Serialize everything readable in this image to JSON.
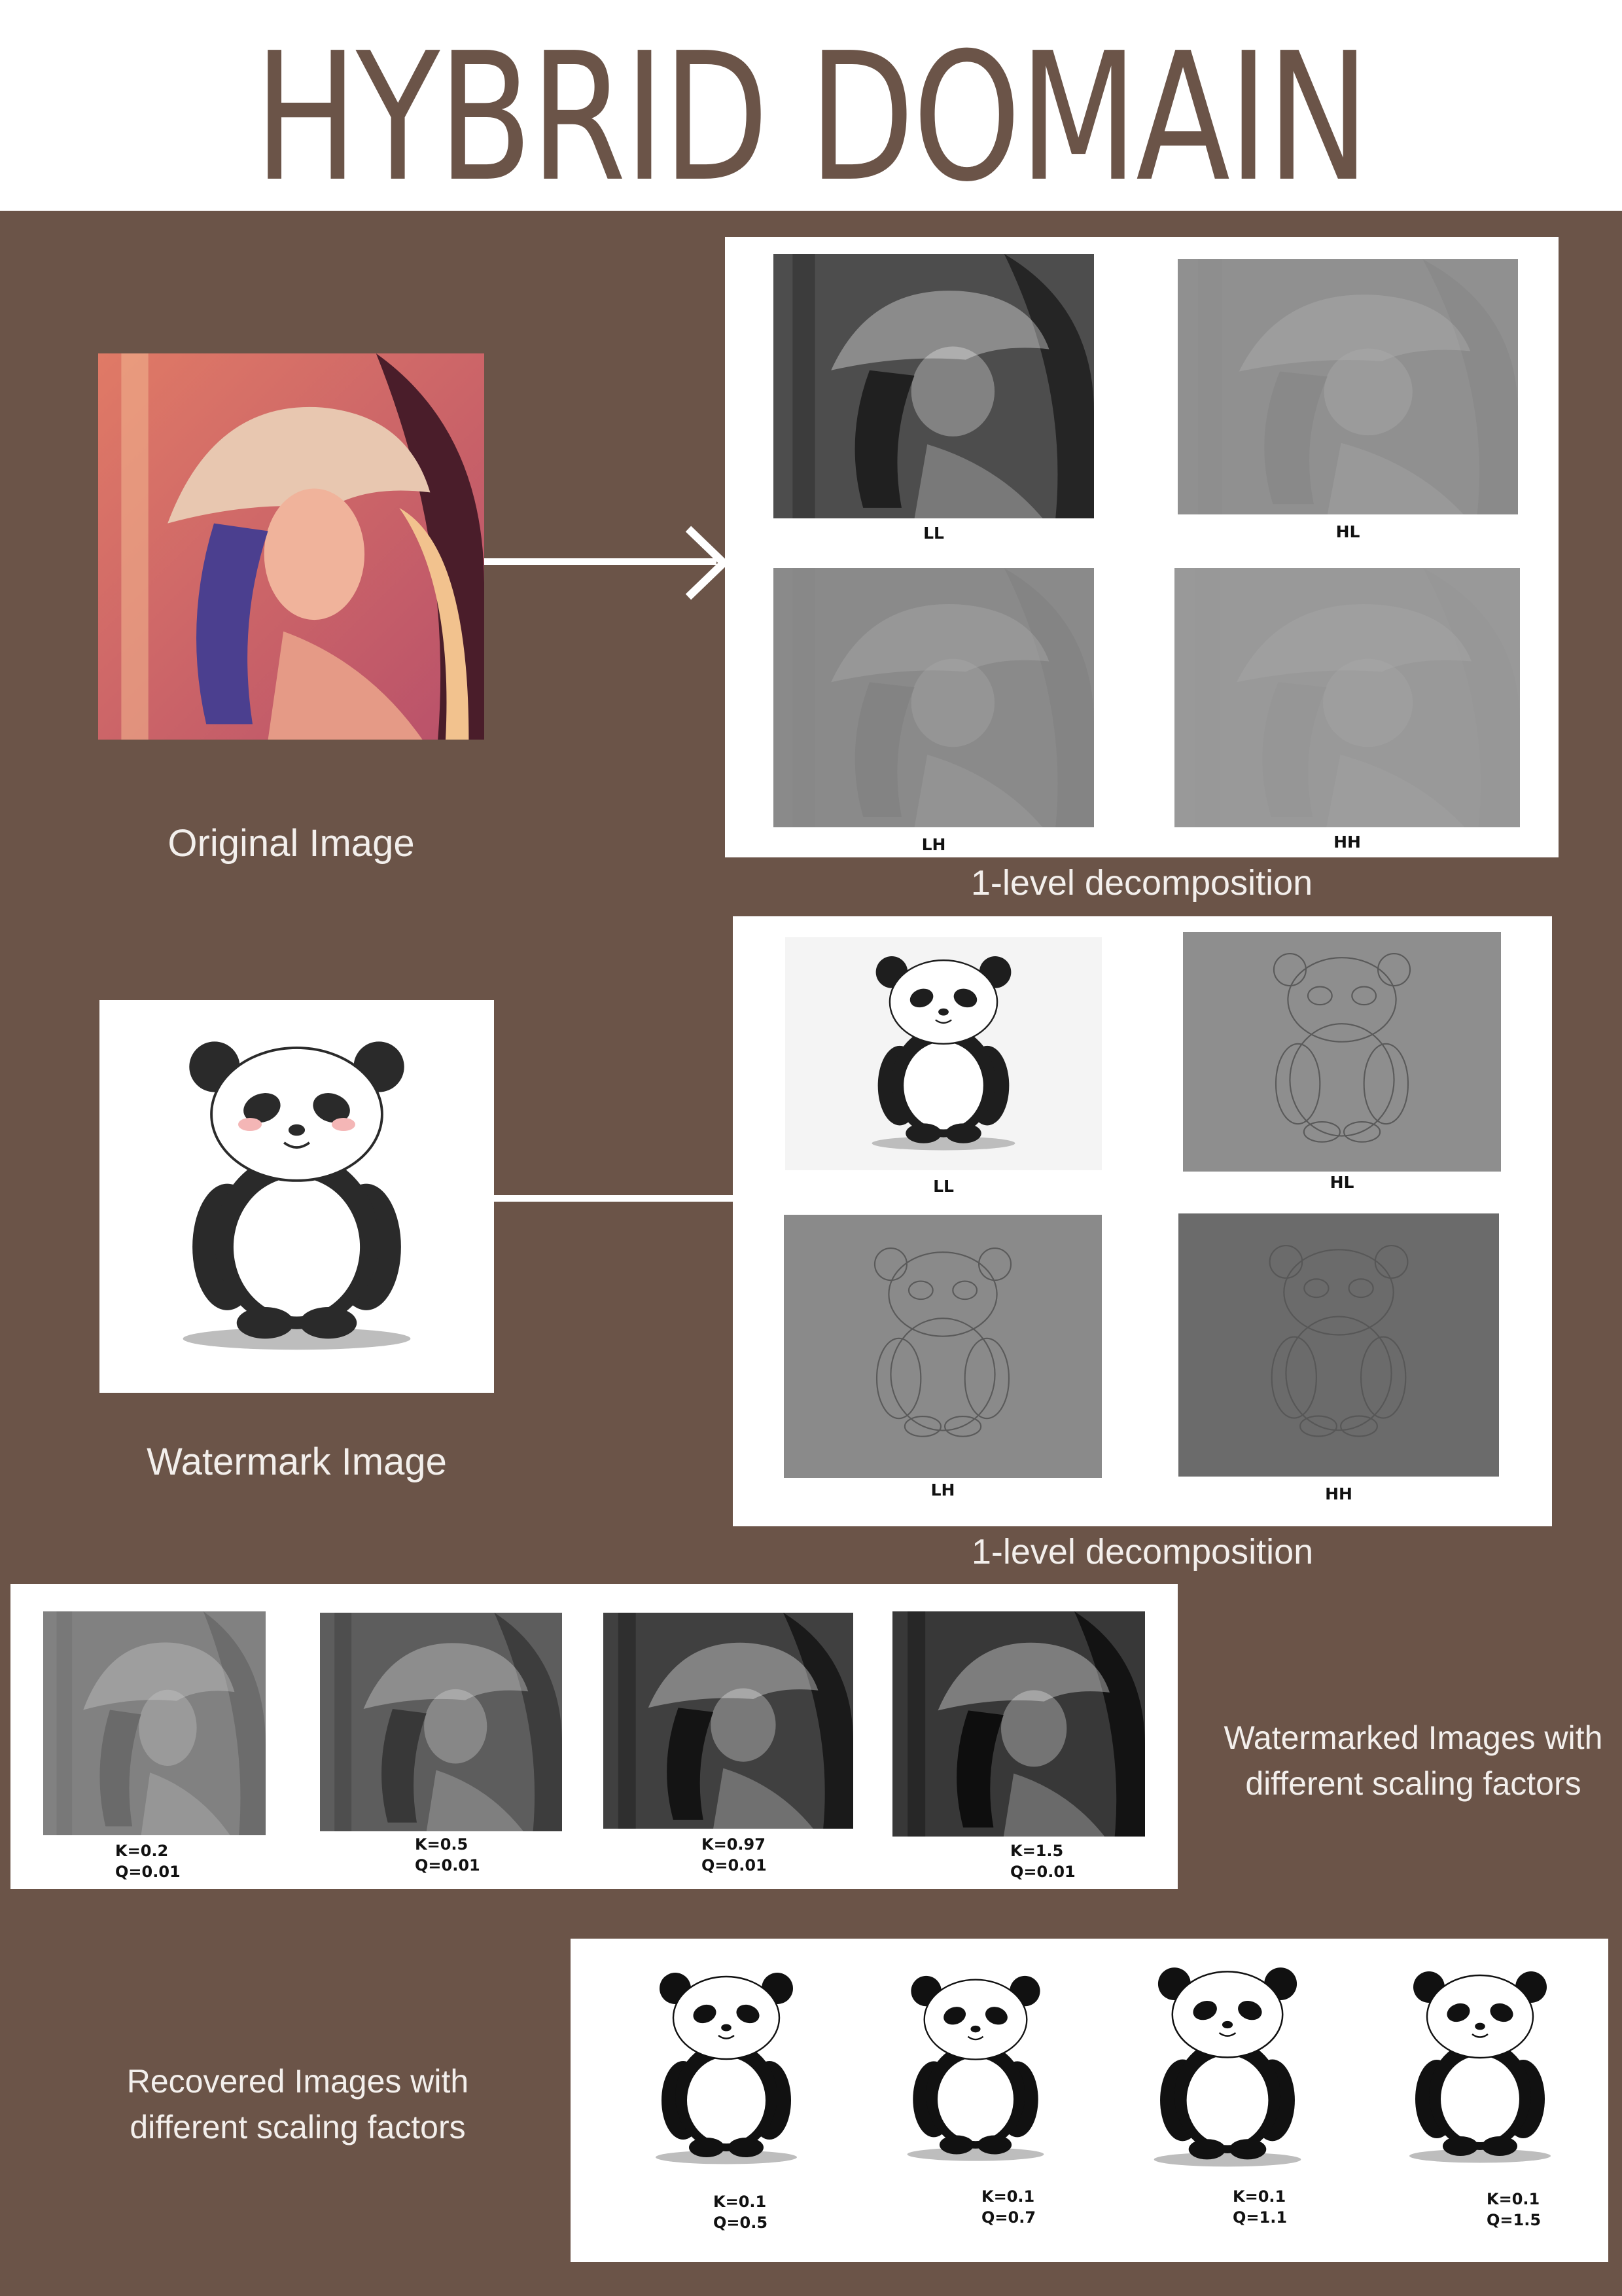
{
  "title": "HYBRID DOMAIN",
  "original": {
    "caption": "Original Image",
    "decomposition_caption": "1-level decomposition",
    "subbands": [
      "LL",
      "HL",
      "LH",
      "HH"
    ]
  },
  "watermark": {
    "caption": "Watermark Image",
    "decomposition_caption": "1-level decomposition",
    "subbands": [
      "LL",
      "HL",
      "LH",
      "HH"
    ]
  },
  "watermarked": {
    "caption_line1": "Watermarked Images with",
    "caption_line2": "different scaling factors",
    "items": [
      {
        "k": "K=0.2",
        "q": "Q=0.01"
      },
      {
        "k": "K=0.5",
        "q": "Q=0.01"
      },
      {
        "k": "K=0.97",
        "q": "Q=0.01"
      },
      {
        "k": "K=1.5",
        "q": "Q=0.01"
      }
    ]
  },
  "recovered": {
    "caption_line1": "Recovered Images with",
    "caption_line2": "different scaling factors",
    "items": [
      {
        "k": "K=0.1",
        "q": "Q=0.5"
      },
      {
        "k": "K=0.1",
        "q": "Q=0.7"
      },
      {
        "k": "K=0.1",
        "q": "Q=1.1"
      },
      {
        "k": "K=0.1",
        "q": "Q=1.5"
      }
    ]
  },
  "colors": {
    "background": "#6b5448",
    "title": "#6b5448",
    "caption_text": "#f3efec",
    "card": "#ffffff"
  }
}
